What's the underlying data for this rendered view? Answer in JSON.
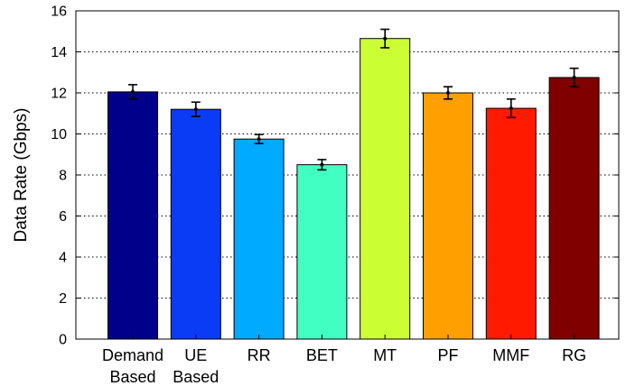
{
  "chart_data": {
    "type": "bar",
    "title": "",
    "xlabel": "",
    "ylabel": "Data Rate (Gbps)",
    "ylim": [
      0,
      16
    ],
    "yticks": [
      0,
      2,
      4,
      6,
      8,
      10,
      12,
      14,
      16
    ],
    "grid": "horizontal dotted",
    "categories": [
      [
        "Demand",
        "Based"
      ],
      [
        "UE",
        "Based"
      ],
      [
        "RR"
      ],
      [
        "BET"
      ],
      [
        "MT"
      ],
      [
        "PF"
      ],
      [
        "MMF"
      ],
      [
        "RG"
      ]
    ],
    "values": [
      12.05,
      11.2,
      9.75,
      8.5,
      14.65,
      12.0,
      11.25,
      12.75
    ],
    "errors": [
      0.35,
      0.35,
      0.22,
      0.25,
      0.45,
      0.3,
      0.45,
      0.45
    ],
    "colors": [
      "#00008b",
      "#0a3cf5",
      "#00aaff",
      "#40ffc0",
      "#ccff33",
      "#ffa000",
      "#ff1a00",
      "#800000"
    ]
  }
}
